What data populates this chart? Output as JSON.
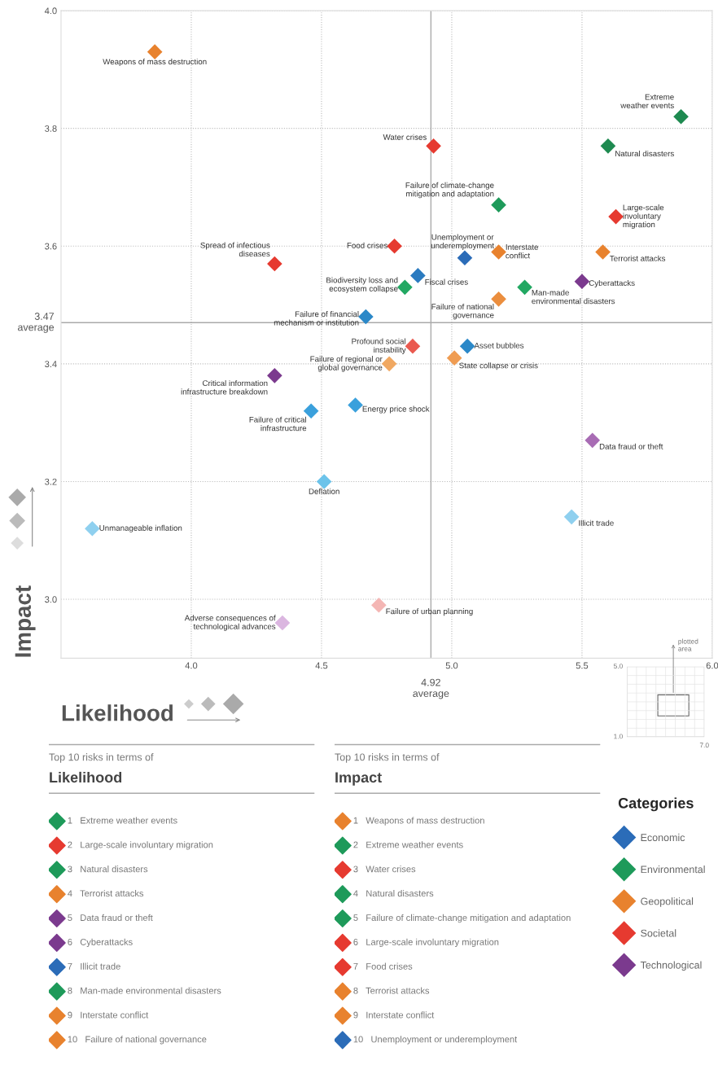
{
  "chart_data": [
    {
      "type": "scatter",
      "xlabel": "Likelihood",
      "ylabel": "Impact",
      "xlim": [
        3.5,
        6.0
      ],
      "ylim": [
        2.9,
        4.0
      ],
      "xticks": [
        {
          "value": 4,
          "label": "4.0"
        },
        {
          "value": 4.5,
          "label": "4.5"
        },
        {
          "value": 5,
          "label": "5.0"
        },
        {
          "value": 5.5,
          "label": "5.5"
        },
        {
          "value": 6,
          "label": "6.0"
        }
      ],
      "yticks": [
        {
          "value": 3,
          "label": "3.0"
        },
        {
          "value": 3.2,
          "label": "3.2"
        },
        {
          "value": 3.4,
          "label": "3.4"
        },
        {
          "value": 3.6,
          "label": "3.6"
        },
        {
          "value": 3.8,
          "label": "3.8"
        },
        {
          "value": 4,
          "label": "4.0"
        }
      ],
      "grid": true,
      "marker": "diamond",
      "legend": "bottom right",
      "legend_title": "Categories",
      "ref_lines": [
        {
          "axis": "x",
          "value": 4.92,
          "label": "4.92\naverage",
          "color": "#aaaaaa"
        },
        {
          "axis": "y",
          "value": 3.47,
          "label": "3.47\naverage",
          "color": "#aaaaaa"
        }
      ],
      "series": [
        {
          "name": "Economic",
          "color": "#2b6cb8",
          "x": [
            5.05,
            4.87,
            4.67,
            5.06,
            4.63,
            4.46,
            4.51,
            5.46,
            3.62
          ],
          "values": [
            3.58,
            3.55,
            3.48,
            3.43,
            3.33,
            3.32,
            3.2,
            3.14,
            3.12
          ],
          "colors": [
            "#2b6cb8",
            "#2b7bc0",
            "#2b88c8",
            "#2b88c8",
            "#3aa0dc",
            "#3aa0dc",
            "#6cc3ea",
            "#8fd0ef",
            "#8fd0ef"
          ]
        },
        {
          "name": "Environmental",
          "color": "#1e9a5a",
          "x": [
            5.88,
            5.6,
            5.18,
            4.82,
            5.28
          ],
          "values": [
            3.82,
            3.77,
            3.67,
            3.53,
            3.53
          ],
          "colors": [
            "#1e8a50",
            "#1e8a50",
            "#1e9a5a",
            "#22a862",
            "#22a862"
          ]
        },
        {
          "name": "Geopolitical",
          "color": "#e8822e",
          "x": [
            3.86,
            5.18,
            5.58,
            5.18,
            5.01,
            4.76
          ],
          "values": [
            3.93,
            3.59,
            3.59,
            3.51,
            3.41,
            3.4
          ],
          "colors": [
            "#e8822e",
            "#e8822e",
            "#e8822e",
            "#eb8e3e",
            "#ef9c52",
            "#f0a862"
          ]
        },
        {
          "name": "Societal",
          "color": "#e63a30",
          "x": [
            4.93,
            5.63,
            4.78,
            4.32,
            4.85,
            4.72
          ],
          "values": [
            3.77,
            3.65,
            3.6,
            3.57,
            3.43,
            2.99
          ],
          "colors": [
            "#e63a30",
            "#e63a30",
            "#e63a30",
            "#e63a30",
            "#ea5a50",
            "#f4b6b4"
          ]
        },
        {
          "name": "Technological",
          "color": "#7b3a8e",
          "x": [
            5.5,
            4.32,
            5.54,
            4.35
          ],
          "values": [
            3.54,
            3.38,
            3.27,
            2.96
          ],
          "colors": [
            "#7b3a8e",
            "#7b3a8e",
            "#a86cb4",
            "#dbb6e0"
          ]
        }
      ],
      "annotations": [
        {
          "text": "Weapons of mass destruction",
          "x": 3.86,
          "y": 3.93
        },
        {
          "text": "Extreme\nweather events",
          "x": 5.88,
          "y": 3.82
        },
        {
          "text": "Natural disasters",
          "x": 5.6,
          "y": 3.77
        },
        {
          "text": "Water crises",
          "x": 4.93,
          "y": 3.77
        },
        {
          "text": "Failure of climate-change\nmitigation and adaptation",
          "x": 5.18,
          "y": 3.67
        },
        {
          "text": "Large-scale\ninvoluntary\nmigration",
          "x": 5.63,
          "y": 3.65
        },
        {
          "text": "Food crises",
          "x": 4.78,
          "y": 3.6
        },
        {
          "text": "Unemployment or\nunderemployment",
          "x": 5.05,
          "y": 3.58
        },
        {
          "text": "Interstate\nconflict",
          "x": 5.18,
          "y": 3.59
        },
        {
          "text": "Terrorist attacks",
          "x": 5.58,
          "y": 3.59
        },
        {
          "text": "Spread of infectious\ndiseases",
          "x": 4.32,
          "y": 3.57
        },
        {
          "text": "Cyberattacks",
          "x": 5.5,
          "y": 3.54
        },
        {
          "text": "Fiscal crises",
          "x": 4.87,
          "y": 3.55
        },
        {
          "text": "Biodiversity loss and\necosystem collapse",
          "x": 4.82,
          "y": 3.53
        },
        {
          "text": "Man-made\nenvironmental disasters",
          "x": 5.28,
          "y": 3.53
        },
        {
          "text": "Failure of national\ngovernance",
          "x": 5.18,
          "y": 3.51
        },
        {
          "text": "Failure of financial\nmechanism or institution",
          "x": 4.67,
          "y": 3.48
        },
        {
          "text": "Profound social\ninstability",
          "x": 4.85,
          "y": 3.43
        },
        {
          "text": "Asset bubbles",
          "x": 5.06,
          "y": 3.43
        },
        {
          "text": "State collapse or crisis",
          "x": 5.01,
          "y": 3.41
        },
        {
          "text": "Failure of regional or\nglobal governance",
          "x": 4.76,
          "y": 3.4
        },
        {
          "text": "Critical information\ninfrastructure breakdown",
          "x": 4.32,
          "y": 3.38
        },
        {
          "text": "Energy price shock",
          "x": 4.63,
          "y": 3.33
        },
        {
          "text": "Failure of critical\ninfrastructure",
          "x": 4.46,
          "y": 3.32
        },
        {
          "text": "Data fraud or theft",
          "x": 5.54,
          "y": 3.27
        },
        {
          "text": "Deflation",
          "x": 4.51,
          "y": 3.2
        },
        {
          "text": "Illicit trade",
          "x": 5.46,
          "y": 3.14
        },
        {
          "text": "Unmanageable inflation",
          "x": 3.62,
          "y": 3.12
        },
        {
          "text": "Failure of urban planning",
          "x": 4.72,
          "y": 2.99
        },
        {
          "text": "Adverse consequences of\ntechnological advances",
          "x": 4.35,
          "y": 2.96
        }
      ]
    },
    {
      "type": "other",
      "subtitle": "Top 10 risks in terms of",
      "title": "Likelihood",
      "categories": [
        "Extreme weather events",
        "Large-scale involuntary migration",
        "Natural disasters",
        "Terrorist attacks",
        "Data fraud or theft",
        "Cyberattacks",
        "Illicit trade",
        "Man-made environmental disasters",
        "Interstate conflict",
        "Failure of national governance"
      ],
      "colors": [
        "#1e9a5a",
        "#e63a30",
        "#1e9a5a",
        "#e8822e",
        "#7b3a8e",
        "#7b3a8e",
        "#2b6cb8",
        "#1e9a5a",
        "#e8822e",
        "#e8822e"
      ],
      "value_labels": [
        "1",
        "2",
        "3",
        "4",
        "5",
        "6",
        "7",
        "8",
        "9",
        "10"
      ]
    },
    {
      "type": "other",
      "subtitle": "Top 10 risks in terms of",
      "title": "Impact",
      "categories": [
        "Weapons of mass destruction",
        "Extreme weather events",
        "Water crises",
        "Natural disasters",
        "Failure of climate-change mitigation and adaptation",
        "Large-scale involuntary migration",
        "Food crises",
        "Terrorist attacks",
        "Interstate conflict",
        "Unemployment or underemployment"
      ],
      "colors": [
        "#e8822e",
        "#1e9a5a",
        "#e63a30",
        "#1e9a5a",
        "#1e9a5a",
        "#e63a30",
        "#e63a30",
        "#e8822e",
        "#e8822e",
        "#2b6cb8"
      ],
      "value_labels": [
        "1",
        "2",
        "3",
        "4",
        "5",
        "6",
        "7",
        "8",
        "9",
        "10"
      ]
    },
    {
      "type": "other",
      "annotations": [
        "5.0",
        "1.0",
        "7.0",
        "plotted\narea"
      ]
    }
  ]
}
